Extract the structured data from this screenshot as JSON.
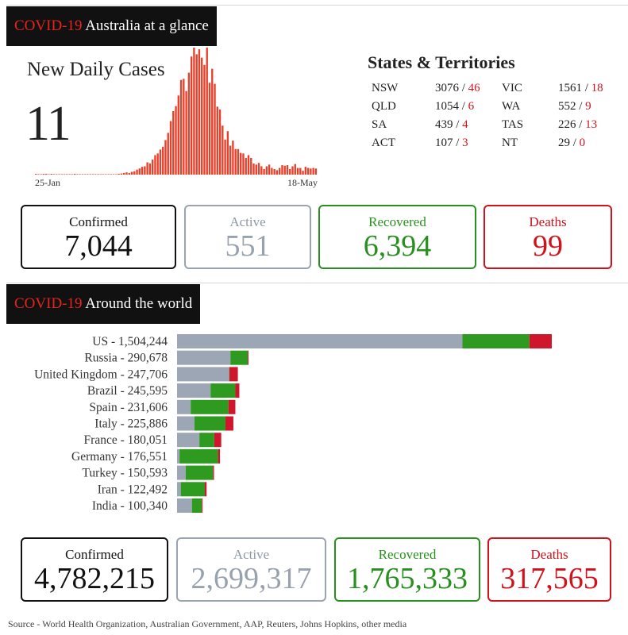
{
  "australia": {
    "header_red": "COVID-19",
    "header_white": "Australia at a glance",
    "new_daily_cases_title": "New Daily Cases",
    "new_daily_cases_value": "11",
    "states_title": "States & Territories",
    "states": [
      {
        "abbr": "NSW",
        "cases": "3076",
        "deaths": "46"
      },
      {
        "abbr": "VIC",
        "cases": "1561",
        "deaths": "18"
      },
      {
        "abbr": "QLD",
        "cases": "1054",
        "deaths": "6"
      },
      {
        "abbr": "WA",
        "cases": "552",
        "deaths": "9"
      },
      {
        "abbr": "SA",
        "cases": "439",
        "deaths": "4"
      },
      {
        "abbr": "TAS",
        "cases": "226",
        "deaths": "13"
      },
      {
        "abbr": "ACT",
        "cases": "107",
        "deaths": "3"
      },
      {
        "abbr": "NT",
        "cases": "29",
        "deaths": "0"
      }
    ],
    "totals": {
      "confirmed_label": "Confirmed",
      "confirmed": "7,044",
      "active_label": "Active",
      "active": "551",
      "recovered_label": "Recovered",
      "recovered": "6,394",
      "deaths_label": "Deaths",
      "deaths": "99"
    }
  },
  "world": {
    "header_red": "COVID-19",
    "header_white": "Around the world",
    "totals": {
      "confirmed_label": "Confirmed",
      "confirmed": "4,782,215",
      "active_label": "Active",
      "active": "2,699,317",
      "recovered_label": "Recovered",
      "recovered": "1,765,333",
      "deaths_label": "Deaths",
      "deaths": "317,565"
    }
  },
  "source_text": "Source - World Health Organization, Australian Government, AAP, Reuters, Johns Hopkins, other media",
  "colors": {
    "bar_red": "#e8402a",
    "active": "#9ca6b4",
    "recovered": "#2e9a1f",
    "deaths": "#d0162c",
    "header_bg": "#111111",
    "accent_red": "#e8231b"
  },
  "chart_data": [
    {
      "type": "bar",
      "title": "New Daily Cases",
      "x_start_label": "25-Jan",
      "x_end_label": "18-May",
      "values": [
        1,
        0,
        0,
        1,
        1,
        0,
        1,
        0,
        0,
        0,
        0,
        0,
        0,
        0,
        0,
        1,
        0,
        0,
        0,
        0,
        0,
        0,
        0,
        0,
        0,
        0,
        0,
        0,
        0,
        0,
        0,
        0,
        1,
        2,
        3,
        4,
        3,
        5,
        6,
        9,
        11,
        14,
        15,
        22,
        20,
        27,
        35,
        38,
        45,
        50,
        62,
        75,
        96,
        114,
        123,
        142,
        170,
        172,
        150,
        183,
        212,
        228,
        216,
        225,
        210,
        197,
        228,
        165,
        190,
        163,
        122,
        117,
        88,
        63,
        78,
        52,
        61,
        46,
        46,
        39,
        38,
        30,
        35,
        30,
        20,
        18,
        21,
        15,
        10,
        15,
        18,
        12,
        10,
        8,
        12,
        17,
        16,
        17,
        10,
        15,
        19,
        12,
        12,
        7,
        14,
        12,
        11,
        12,
        11
      ]
    },
    {
      "type": "bar",
      "stacked": true,
      "orientation": "horizontal",
      "categories": [
        "US - 1,504,244",
        "Russia - 290,678",
        "United Kingdom - 247,706",
        "Brazil - 245,595",
        "Spain - 231,606",
        "Italy - 225,886",
        "France - 180,051",
        "Germany - 176,551",
        "Turkey - 150,593",
        "Iran - 122,492",
        "India - 100,340"
      ],
      "series": [
        {
          "name": "Active",
          "values": [
            1150000,
            215000,
            210000,
            135000,
            55000,
            70000,
            90000,
            10000,
            35000,
            15000,
            60000
          ]
        },
        {
          "name": "Recovered",
          "values": [
            270000,
            70000,
            1000,
            100000,
            152000,
            125000,
            60000,
            155000,
            110000,
            97000,
            40000
          ]
        },
        {
          "name": "Deaths",
          "values": [
            90000,
            3000,
            34000,
            16000,
            28000,
            32000,
            28000,
            8000,
            4000,
            7000,
            3000
          ]
        }
      ]
    }
  ]
}
